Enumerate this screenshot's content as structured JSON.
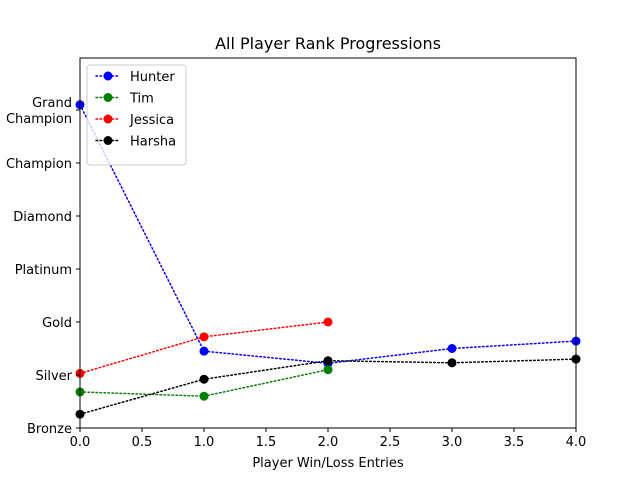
{
  "chart_data": {
    "type": "line",
    "title": "All Player Rank Progressions",
    "xlabel": "Player Win/Loss Entries",
    "ylabel": "",
    "xlim": [
      0,
      4
    ],
    "ylim": [
      0,
      6
    ],
    "x_ticks": [
      0,
      0.5,
      1,
      1.5,
      2,
      2.5,
      3,
      3.5,
      4
    ],
    "x_tick_labels": [
      "0.0",
      "0.5",
      "1.0",
      "1.5",
      "2.0",
      "2.5",
      "3.0",
      "3.5",
      "4.0"
    ],
    "y_ticks": [
      {
        "value": 0,
        "lines": [
          "Bronze"
        ]
      },
      {
        "value": 1,
        "lines": [
          "Silver"
        ]
      },
      {
        "value": 2,
        "lines": [
          "Gold"
        ]
      },
      {
        "value": 3,
        "lines": [
          "Platinum"
        ]
      },
      {
        "value": 4,
        "lines": [
          "Diamond"
        ]
      },
      {
        "value": 5,
        "lines": [
          "Champion"
        ]
      },
      {
        "value": 6,
        "lines": [
          "Grand",
          "Champion"
        ]
      }
    ],
    "grid": false,
    "legend_position": "top-left",
    "line_style": "dotted",
    "series": [
      {
        "name": "Hunter",
        "color": "#0000ff",
        "x": [
          0,
          1,
          2,
          3,
          4
        ],
        "y": [
          6.1,
          1.45,
          1.22,
          1.5,
          1.64
        ]
      },
      {
        "name": "Tim",
        "color": "#008000",
        "x": [
          0,
          1,
          2
        ],
        "y": [
          0.68,
          0.6,
          1.1
        ]
      },
      {
        "name": "Jessica",
        "color": "#ff0000",
        "x": [
          0,
          1,
          2
        ],
        "y": [
          1.03,
          1.72,
          2.0
        ]
      },
      {
        "name": "Harsha",
        "color": "#000000",
        "x": [
          0,
          1,
          2,
          3,
          4
        ],
        "y": [
          0.26,
          0.92,
          1.27,
          1.23,
          1.3
        ]
      }
    ]
  }
}
